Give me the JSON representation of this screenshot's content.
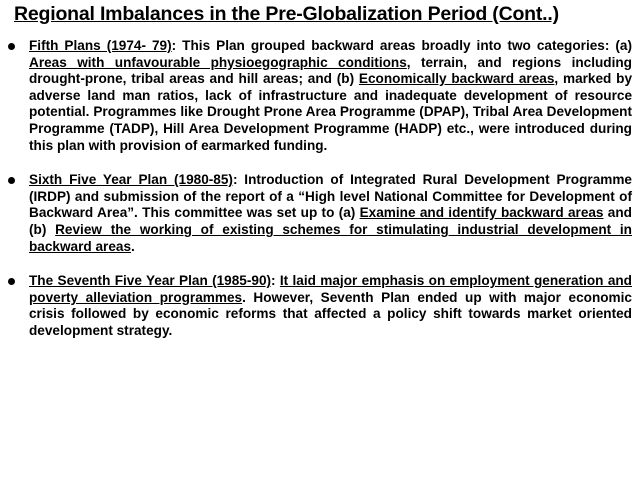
{
  "header": {
    "title": "Regional Imbalances in the Pre-Globalization Period (Cont..)"
  },
  "bullets": [
    {
      "segments": [
        {
          "text": "Fifth Plans (1974- 79)",
          "underline": true
        },
        {
          "text": ": This Plan grouped backward areas broadly into two categories: (a) ",
          "underline": false
        },
        {
          "text": "Areas with unfavourable physioegographic conditions",
          "underline": true
        },
        {
          "text": ", terrain, and regions including drought-prone, tribal areas and hill areas; and (b) ",
          "underline": false
        },
        {
          "text": "Economically backward areas",
          "underline": true
        },
        {
          "text": ", marked by adverse land man ratios, lack of infrastructure and inadequate development of resource potential. Programmes like Drought Prone Area Programme (DPAP), Tribal Area Development Programme (TADP), Hill Area Development Programme (HADP) etc., were introduced during this plan with provision of earmarked funding.",
          "underline": false
        }
      ]
    },
    {
      "segments": [
        {
          "text": "Sixth Five Year Plan (1980-85)",
          "underline": true
        },
        {
          "text": ": Introduction of Integrated Rural Development Programme (IRDP) and submission of the report of a “High level National Committee for Development of Backward Area”. This committee was set up to (a) ",
          "underline": false
        },
        {
          "text": "Examine and identify backward areas",
          "underline": true
        },
        {
          "text": " and (b) ",
          "underline": false
        },
        {
          "text": "Review the working of existing schemes for stimulating industrial development in backward areas",
          "underline": true
        },
        {
          "text": ".",
          "underline": false
        }
      ]
    },
    {
      "segments": [
        {
          "text": "The Seventh Five Year Plan (1985-90)",
          "underline": true
        },
        {
          "text": ": ",
          "underline": false
        },
        {
          "text": "It laid major emphasis on employment generation and poverty alleviation programmes",
          "underline": true
        },
        {
          "text": ". However, Seventh Plan ended up with major economic crisis followed by economic reforms that affected a policy shift towards market oriented development strategy.",
          "underline": false
        }
      ]
    }
  ]
}
